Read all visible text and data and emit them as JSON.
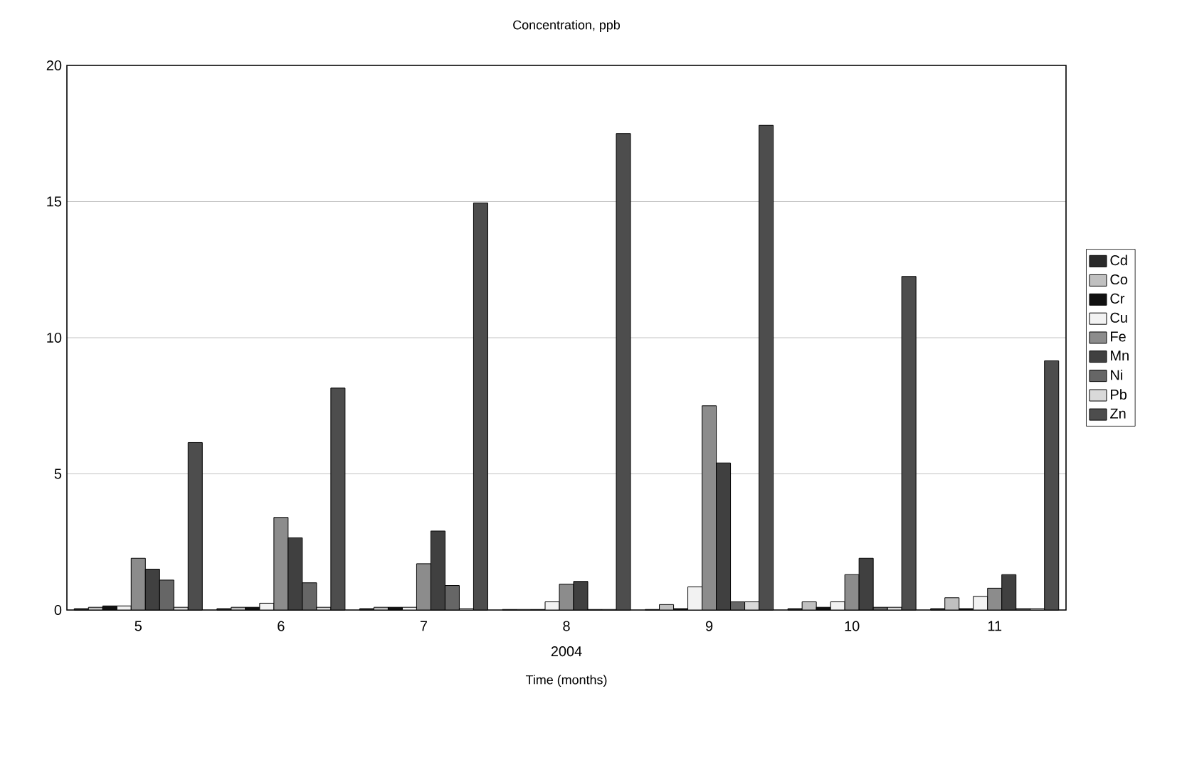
{
  "chart_data": {
    "type": "bar",
    "title": "Concentration, ppb",
    "xlabel": "Time (months)",
    "annotations": [
      "2004"
    ],
    "categories": [
      "5",
      "6",
      "7",
      "8",
      "9",
      "10",
      "11"
    ],
    "ylim": [
      0,
      20
    ],
    "yticks": [
      0,
      5,
      10,
      15,
      20
    ],
    "grid": "y",
    "legend": "right",
    "series": [
      {
        "name": "Cd",
        "color": "#2a2a2a",
        "values": [
          0.05,
          0.05,
          0.05,
          0.02,
          0.02,
          0.05,
          0.05
        ]
      },
      {
        "name": "Co",
        "color": "#c0c0c0",
        "values": [
          0.1,
          0.1,
          0.1,
          0.02,
          0.2,
          0.3,
          0.45
        ]
      },
      {
        "name": "Cr",
        "color": "#111111",
        "values": [
          0.15,
          0.1,
          0.1,
          0.02,
          0.05,
          0.1,
          0.05
        ]
      },
      {
        "name": "Cu",
        "color": "#f2f2f2",
        "values": [
          0.15,
          0.25,
          0.1,
          0.3,
          0.85,
          0.3,
          0.5
        ]
      },
      {
        "name": "Fe",
        "color": "#8c8c8c",
        "values": [
          1.9,
          3.4,
          1.7,
          0.95,
          7.5,
          1.3,
          0.8
        ]
      },
      {
        "name": "Mn",
        "color": "#404040",
        "values": [
          1.5,
          2.65,
          2.9,
          1.05,
          5.4,
          1.9,
          1.3
        ]
      },
      {
        "name": "Ni",
        "color": "#666666",
        "values": [
          1.1,
          1.0,
          0.9,
          0.02,
          0.3,
          0.1,
          0.05
        ]
      },
      {
        "name": "Pb",
        "color": "#d9d9d9",
        "values": [
          0.1,
          0.1,
          0.05,
          0.02,
          0.3,
          0.1,
          0.05
        ]
      },
      {
        "name": "Zn",
        "color": "#4d4d4d",
        "values": [
          6.15,
          8.15,
          14.95,
          17.5,
          17.8,
          12.25,
          9.15
        ]
      }
    ]
  }
}
